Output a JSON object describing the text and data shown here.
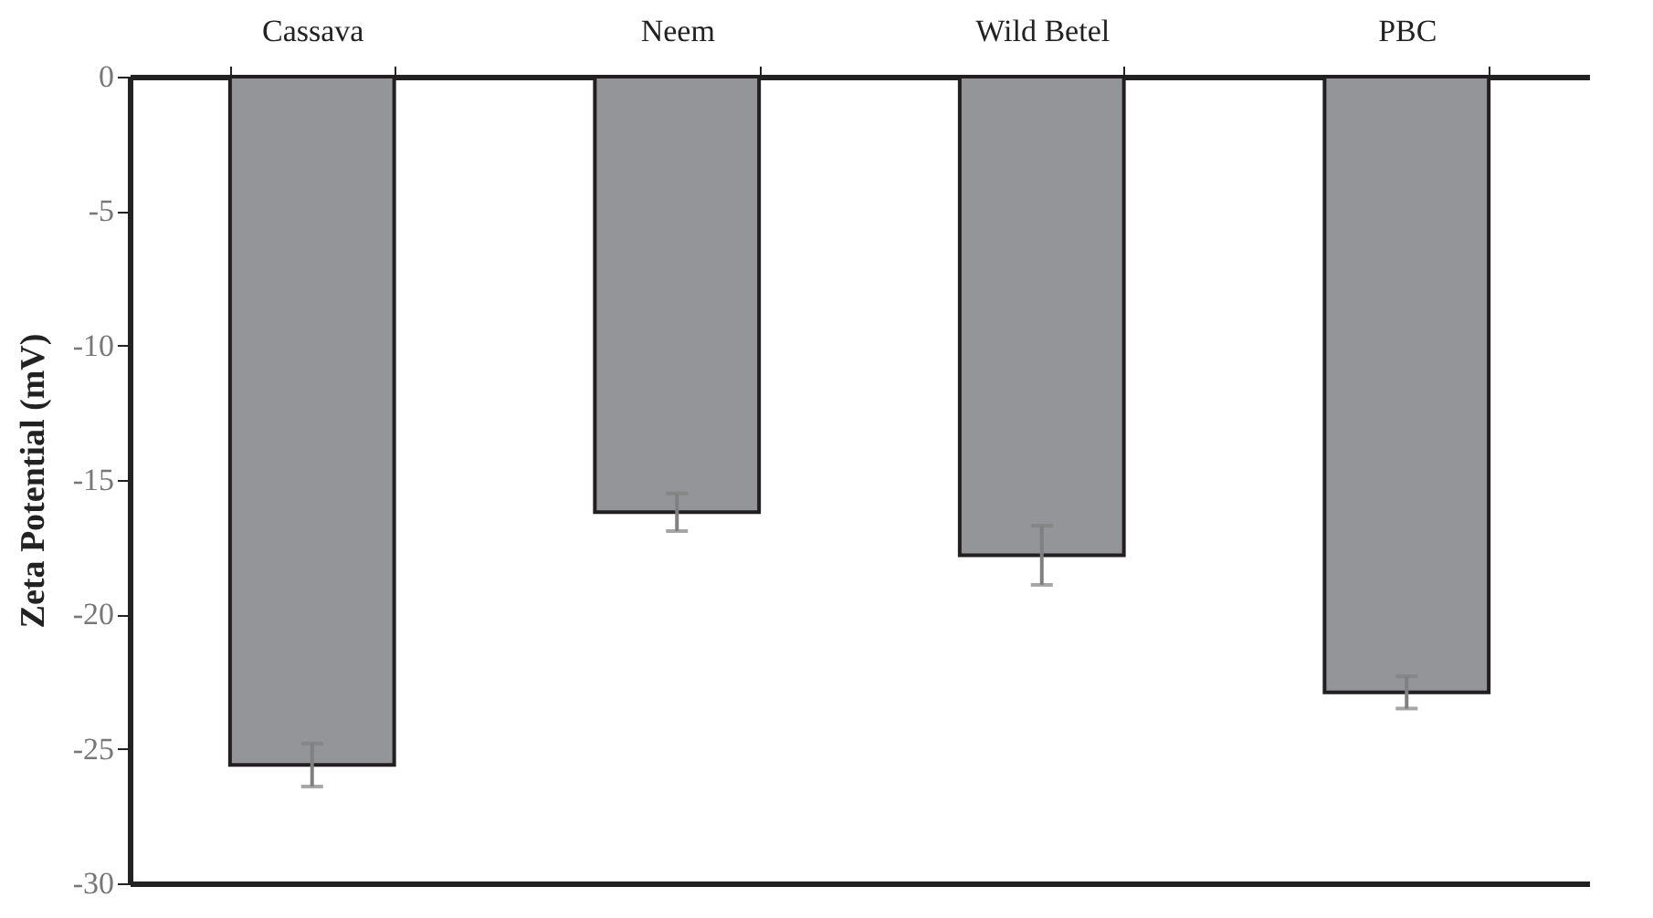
{
  "chart_data": {
    "type": "bar",
    "ylabel": "Zeta Potential (mV)",
    "categories": [
      "Cassava",
      "Neem",
      "Wild Betel",
      "PBC"
    ],
    "values": [
      -25.6,
      -16.2,
      -17.8,
      -22.9
    ],
    "errors": [
      0.8,
      0.7,
      1.1,
      0.6
    ],
    "color": "#939598",
    "ylim": [
      -30,
      0
    ],
    "yticks": [
      0,
      -5,
      -10,
      -15,
      -20,
      -25,
      -30
    ],
    "grid": false
  }
}
